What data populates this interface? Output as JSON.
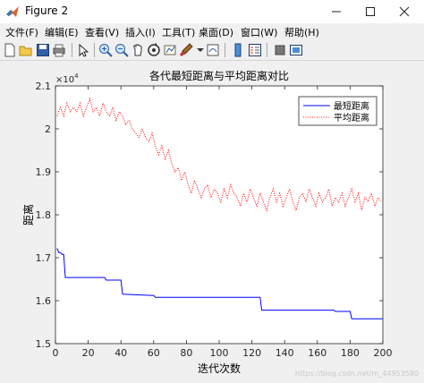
{
  "window": {
    "title": "Figure 2"
  },
  "menu": [
    "文件(F)",
    "编辑(E)",
    "查看(V)",
    "插入(I)",
    "工具(T)",
    "桌面(D)",
    "窗口(W)",
    "帮助(H)"
  ],
  "toolbar": {
    "buttons": [
      "new-figure",
      "open-file",
      "save",
      "print",
      "edit-plot",
      "zoom-in",
      "zoom-out",
      "pan",
      "rotate-3d",
      "data-cursor",
      "brush",
      "link-plot",
      "colorbar",
      "legend",
      "hide-plot-tools",
      "show-plot-tools"
    ]
  },
  "watermark": "https://blog.csdn.net/m_44953580",
  "chart_data": {
    "type": "line",
    "title": "各代最短距离与平均距离对比",
    "xlabel": "迭代次数",
    "ylabel": "距离",
    "exponent_label": "×10",
    "exponent_power": "4",
    "xlim": [
      0,
      200
    ],
    "ylim": [
      1.5,
      2.1
    ],
    "xticks": [
      "0",
      "20",
      "40",
      "60",
      "80",
      "100",
      "120",
      "140",
      "160",
      "180",
      "200"
    ],
    "yticks": [
      "1.5",
      "1.6",
      "1.7",
      "1.8",
      "1.9",
      "2",
      "2.1"
    ],
    "legend_position": "top-right",
    "series": [
      {
        "name": "最短距离",
        "color": "#0000ff",
        "style": "solid",
        "x": [
          1,
          2,
          3,
          4,
          5,
          6,
          7,
          8,
          30,
          31,
          40,
          41,
          60,
          61,
          125,
          126,
          170,
          171,
          180,
          181,
          200
        ],
        "y": [
          1.722,
          1.712,
          1.712,
          1.708,
          1.708,
          1.654,
          1.654,
          1.654,
          1.654,
          1.648,
          1.648,
          1.615,
          1.612,
          1.608,
          1.608,
          1.578,
          1.578,
          1.575,
          1.575,
          1.558,
          1.558
        ]
      },
      {
        "name": "平均距离",
        "color": "#ff0000",
        "style": "dotted",
        "x": [
          1,
          3,
          5,
          7,
          9,
          11,
          13,
          15,
          17,
          19,
          21,
          23,
          25,
          27,
          29,
          31,
          33,
          35,
          37,
          39,
          41,
          43,
          45,
          47,
          49,
          51,
          53,
          55,
          57,
          59,
          61,
          63,
          65,
          67,
          69,
          71,
          73,
          75,
          77,
          79,
          81,
          83,
          85,
          87,
          89,
          91,
          93,
          95,
          97,
          99,
          101,
          103,
          105,
          107,
          109,
          111,
          113,
          115,
          117,
          119,
          121,
          123,
          125,
          127,
          129,
          131,
          133,
          135,
          137,
          139,
          141,
          143,
          145,
          147,
          149,
          151,
          153,
          155,
          157,
          159,
          161,
          163,
          165,
          167,
          169,
          171,
          173,
          175,
          177,
          179,
          181,
          183,
          185,
          187,
          189,
          191,
          193,
          195,
          197,
          199
        ],
        "y": [
          2.03,
          2.05,
          2.03,
          2.06,
          2.04,
          2.05,
          2.04,
          2.06,
          2.03,
          2.05,
          2.07,
          2.04,
          2.05,
          2.03,
          2.06,
          2.04,
          2.03,
          2.05,
          2.02,
          2.04,
          2.03,
          2.01,
          2.02,
          2.0,
          1.99,
          1.98,
          2.0,
          1.98,
          1.97,
          1.99,
          1.96,
          1.94,
          1.96,
          1.93,
          1.95,
          1.92,
          1.9,
          1.91,
          1.88,
          1.9,
          1.87,
          1.85,
          1.88,
          1.86,
          1.84,
          1.86,
          1.87,
          1.84,
          1.86,
          1.85,
          1.83,
          1.86,
          1.84,
          1.87,
          1.85,
          1.84,
          1.82,
          1.85,
          1.83,
          1.86,
          1.84,
          1.82,
          1.85,
          1.83,
          1.81,
          1.84,
          1.86,
          1.83,
          1.85,
          1.82,
          1.84,
          1.86,
          1.83,
          1.81,
          1.84,
          1.85,
          1.83,
          1.86,
          1.84,
          1.82,
          1.85,
          1.83,
          1.84,
          1.86,
          1.82,
          1.84,
          1.83,
          1.85,
          1.82,
          1.84,
          1.86,
          1.83,
          1.85,
          1.81,
          1.84,
          1.83,
          1.85,
          1.82,
          1.84,
          1.83
        ]
      }
    ]
  }
}
